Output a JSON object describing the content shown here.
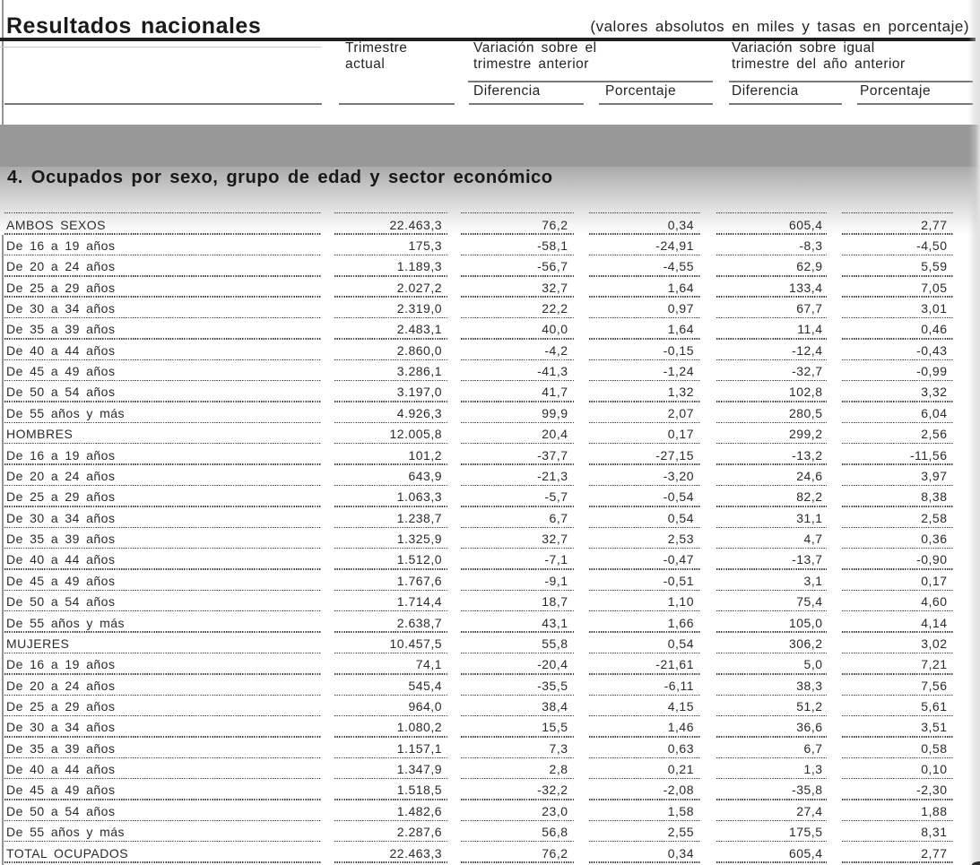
{
  "page": {
    "title": "Resultados nacionales",
    "subtitle": "(valores absolutos en miles y tasas en porcentaje)"
  },
  "columns": {
    "current_quarter": "Trimestre\nactual",
    "vs_previous_quarter": "Variación sobre el\ntrimestre anterior",
    "vs_year_ago_quarter": "Variación sobre igual\ntrimestre del año anterior",
    "difference": "Diferencia",
    "percentage": "Porcentaje"
  },
  "section": {
    "title": "4. Ocupados por sexo, grupo de edad y sector económico"
  },
  "table": {
    "rows": [
      {
        "label": "AMBOS SEXOS",
        "values": [
          "22.463,3",
          "76,2",
          "0,34",
          "605,4",
          "2,77"
        ]
      },
      {
        "label": "De 16 a 19 años",
        "values": [
          "175,3",
          "-58,1",
          "-24,91",
          "-8,3",
          "-4,50"
        ]
      },
      {
        "label": "De 20 a 24 años",
        "values": [
          "1.189,3",
          "-56,7",
          "-4,55",
          "62,9",
          "5,59"
        ]
      },
      {
        "label": "De 25 a 29 años",
        "values": [
          "2.027,2",
          "32,7",
          "1,64",
          "133,4",
          "7,05"
        ]
      },
      {
        "label": "De 30 a 34 años",
        "values": [
          "2.319,0",
          "22,2",
          "0,97",
          "67,7",
          "3,01"
        ]
      },
      {
        "label": "De 35 a 39 años",
        "values": [
          "2.483,1",
          "40,0",
          "1,64",
          "11,4",
          "0,46"
        ]
      },
      {
        "label": "De 40 a 44 años",
        "values": [
          "2.860,0",
          "-4,2",
          "-0,15",
          "-12,4",
          "-0,43"
        ]
      },
      {
        "label": "De 45 a 49 años",
        "values": [
          "3.286,1",
          "-41,3",
          "-1,24",
          "-32,7",
          "-0,99"
        ]
      },
      {
        "label": "De 50 a 54 años",
        "values": [
          "3.197,0",
          "41,7",
          "1,32",
          "102,8",
          "3,32"
        ]
      },
      {
        "label": "De 55 años y más",
        "values": [
          "4.926,3",
          "99,9",
          "2,07",
          "280,5",
          "6,04"
        ]
      },
      {
        "label": "HOMBRES",
        "values": [
          "12.005,8",
          "20,4",
          "0,17",
          "299,2",
          "2,56"
        ]
      },
      {
        "label": "De 16 a 19 años",
        "values": [
          "101,2",
          "-37,7",
          "-27,15",
          "-13,2",
          "-11,56"
        ]
      },
      {
        "label": "De 20 a 24 años",
        "values": [
          "643,9",
          "-21,3",
          "-3,20",
          "24,6",
          "3,97"
        ]
      },
      {
        "label": "De 25 a 29 años",
        "values": [
          "1.063,3",
          "-5,7",
          "-0,54",
          "82,2",
          "8,38"
        ]
      },
      {
        "label": "De 30 a 34 años",
        "values": [
          "1.238,7",
          "6,7",
          "0,54",
          "31,1",
          "2,58"
        ]
      },
      {
        "label": "De 35 a 39 años",
        "values": [
          "1.325,9",
          "32,7",
          "2,53",
          "4,7",
          "0,36"
        ]
      },
      {
        "label": "De 40 a 44 años",
        "values": [
          "1.512,0",
          "-7,1",
          "-0,47",
          "-13,7",
          "-0,90"
        ]
      },
      {
        "label": "De 45 a 49 años",
        "values": [
          "1.767,6",
          "-9,1",
          "-0,51",
          "3,1",
          "0,17"
        ]
      },
      {
        "label": "De 50 a 54 años",
        "values": [
          "1.714,4",
          "18,7",
          "1,10",
          "75,4",
          "4,60"
        ]
      },
      {
        "label": "De 55 años y más",
        "values": [
          "2.638,7",
          "43,1",
          "1,66",
          "105,0",
          "4,14"
        ]
      },
      {
        "label": "MUJERES",
        "values": [
          "10.457,5",
          "55,8",
          "0,54",
          "306,2",
          "3,02"
        ]
      },
      {
        "label": "De 16 a 19 años",
        "values": [
          "74,1",
          "-20,4",
          "-21,61",
          "5,0",
          "7,21"
        ]
      },
      {
        "label": "De 20 a 24 años",
        "values": [
          "545,4",
          "-35,5",
          "-6,11",
          "38,3",
          "7,56"
        ]
      },
      {
        "label": "De 25 a 29 años",
        "values": [
          "964,0",
          "38,4",
          "4,15",
          "51,2",
          "5,61"
        ]
      },
      {
        "label": "De 30 a 34 años",
        "values": [
          "1.080,2",
          "15,5",
          "1,46",
          "36,6",
          "3,51"
        ]
      },
      {
        "label": "De 35 a 39 años",
        "values": [
          "1.157,1",
          "7,3",
          "0,63",
          "6,7",
          "0,58"
        ]
      },
      {
        "label": "De 40 a 44 años",
        "values": [
          "1.347,9",
          "2,8",
          "0,21",
          "1,3",
          "0,10"
        ]
      },
      {
        "label": "De 45 a 49 años",
        "values": [
          "1.518,5",
          "-32,2",
          "-2,08",
          "-35,8",
          "-2,30"
        ]
      },
      {
        "label": "De 50 a 54 años",
        "values": [
          "1.482,6",
          "23,0",
          "1,58",
          "27,4",
          "1,88"
        ]
      },
      {
        "label": "De 55 años y más",
        "values": [
          "2.287,6",
          "56,8",
          "2,55",
          "175,5",
          "8,31"
        ]
      },
      {
        "label": "TOTAL OCUPADOS",
        "values": [
          "22.463,3",
          "76,2",
          "0,34",
          "605,4",
          "2,77"
        ]
      }
    ]
  },
  "colors": {
    "separator_band": "#989898",
    "text": "#303030",
    "rule": "#1e1e1e"
  }
}
